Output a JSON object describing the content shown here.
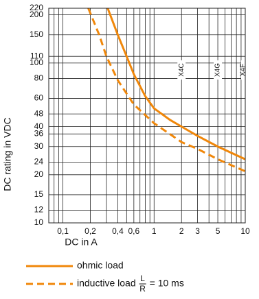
{
  "chart_data": {
    "type": "line",
    "log_x": true,
    "log_y": true,
    "grid": true,
    "xlabel": "DC in A",
    "ylabel": "DC rating in VDC",
    "xlim": [
      0.07,
      10
    ],
    "ylim": [
      10,
      220
    ],
    "xticks": [
      {
        "value": 0.1,
        "label": "0,1"
      },
      {
        "value": 0.2,
        "label": "0,2"
      },
      {
        "value": 0.4,
        "label": "0,4"
      },
      {
        "value": 0.6,
        "label": "0,6"
      },
      1,
      2,
      3,
      5,
      10
    ],
    "xminor_ticks": [
      0.08,
      0.09,
      0.3,
      0.5,
      0.7,
      0.8,
      0.9,
      4,
      6,
      7,
      8,
      9
    ],
    "yticks": [
      10,
      12,
      15,
      20,
      24,
      30,
      36,
      40,
      48,
      60,
      80,
      100,
      110,
      150,
      200,
      220
    ],
    "annotations": [
      {
        "text": "X4C",
        "x": 2
      },
      {
        "text": "X4G",
        "x": 5
      },
      {
        "text": "X4F",
        "x": 10
      }
    ],
    "series": [
      {
        "name": "ohmic load",
        "color": "#f0870a",
        "dash": false,
        "x": [
          0.31,
          0.4,
          0.5,
          0.6,
          0.8,
          1,
          1.5,
          2,
          3,
          5,
          10
        ],
        "values": [
          220,
          150,
          110,
          85,
          62,
          52,
          44,
          40,
          35,
          30,
          25
        ]
      },
      {
        "name": "inductive load",
        "color": "#f0870a",
        "dash": true,
        "x": [
          0.19,
          0.25,
          0.3,
          0.4,
          0.6,
          1,
          2,
          3,
          5,
          10
        ],
        "values": [
          220,
          150,
          110,
          78,
          55,
          42,
          32,
          29,
          25,
          21
        ]
      }
    ],
    "legend_fraction": {
      "numerator": "L",
      "denominator": "R"
    },
    "legend_suffix": "= 10 ms"
  }
}
